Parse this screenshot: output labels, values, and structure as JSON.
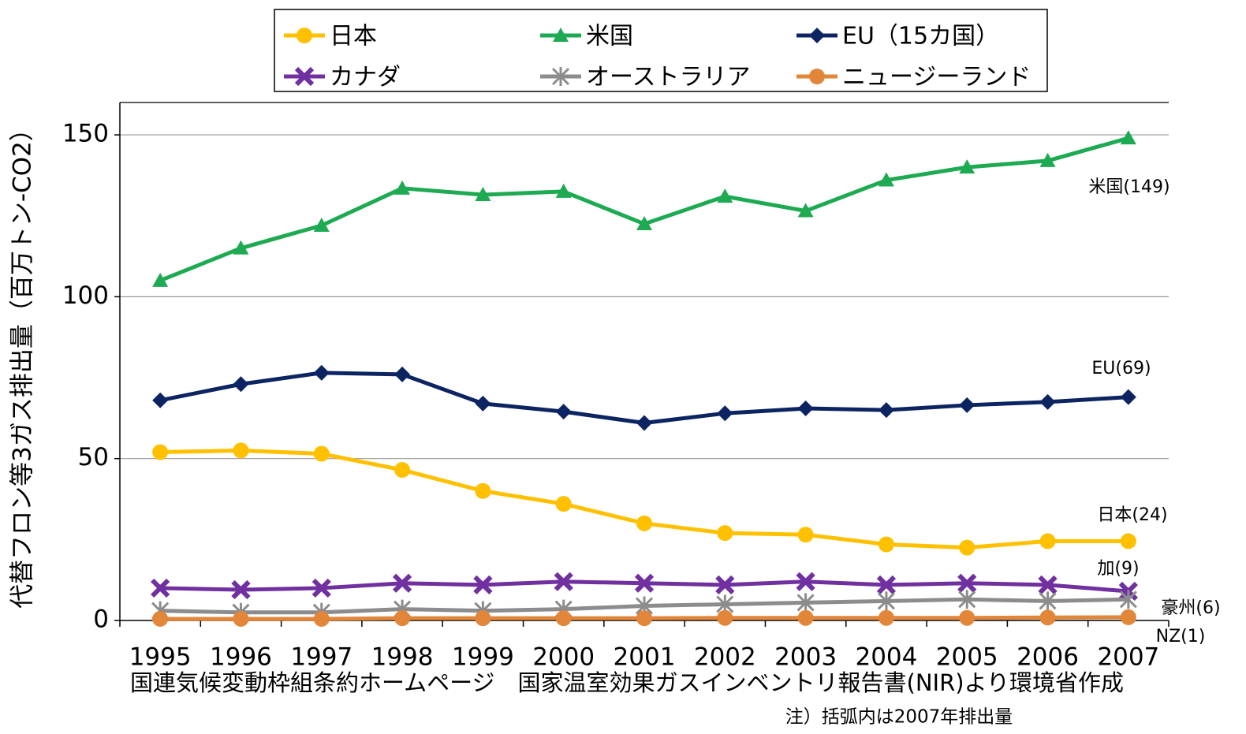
{
  "chart_data": {
    "type": "line",
    "y_label": "代替フロン等3ガス排出量（百万トン-CO2）",
    "source": "国連気候変動枠組条約ホームページ　国家温室効果ガスインベントリ報告書(NIR)より環境省作成",
    "note": "注）括弧内は2007年排出量",
    "categories": [
      "1995",
      "1996",
      "1997",
      "1998",
      "1999",
      "2000",
      "2001",
      "2002",
      "2003",
      "2004",
      "2005",
      "2006",
      "2007"
    ],
    "ylim": [
      0,
      160
    ],
    "yticks": [
      0,
      50,
      100,
      150
    ],
    "grid": true,
    "legend": "top",
    "series": [
      {
        "name": "日本",
        "color": "#FFC000",
        "marker": "circle",
        "values": [
          52,
          52.5,
          51.5,
          46.5,
          40,
          36,
          30,
          27,
          26.5,
          23.5,
          22.5,
          24.5,
          24.5
        ]
      },
      {
        "name": "米国",
        "color": "#1EAA52",
        "marker": "triangle",
        "values": [
          105,
          115,
          122,
          133.5,
          131.5,
          132.5,
          122.5,
          131,
          126.5,
          136,
          140,
          142,
          149
        ]
      },
      {
        "name": "EU（15カ国）",
        "color": "#0C2461",
        "marker": "diamond",
        "values": [
          68,
          73,
          76.5,
          76,
          67,
          64.5,
          61,
          64,
          65.5,
          65,
          66.5,
          67.5,
          69
        ]
      },
      {
        "name": "カナダ",
        "color": "#7030A0",
        "marker": "x",
        "values": [
          10,
          9.5,
          10,
          11.5,
          11,
          12,
          11.5,
          11,
          12,
          11,
          11.5,
          11,
          9
        ]
      },
      {
        "name": "オーストラリア",
        "color": "#8C8C8C",
        "marker": "star",
        "values": [
          3,
          2.5,
          2.5,
          3.5,
          3,
          3.5,
          4.5,
          5,
          5.5,
          6,
          6.5,
          6,
          6.5
        ]
      },
      {
        "name": "ニュージーランド",
        "color": "#E2863A",
        "marker": "circle",
        "values": [
          0.5,
          0.5,
          0.5,
          0.7,
          0.7,
          0.7,
          0.7,
          0.8,
          0.8,
          0.8,
          0.8,
          0.9,
          1
        ]
      }
    ],
    "annotations": [
      "米国(149)",
      "EU(69)",
      "日本(24)",
      "加(9)",
      "豪州(6)",
      "NZ(1)"
    ]
  }
}
